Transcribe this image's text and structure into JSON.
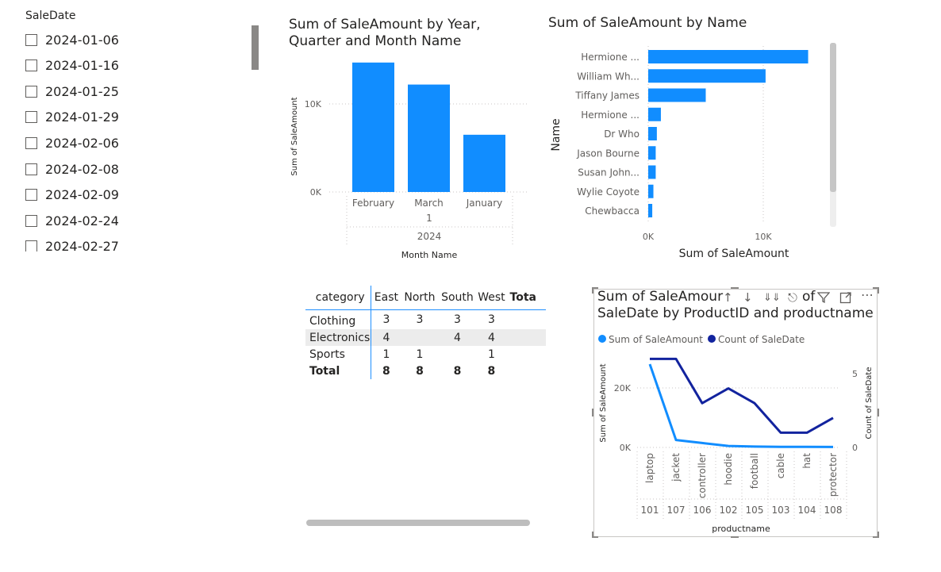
{
  "slicer": {
    "title": "SaleDate",
    "items": [
      "2024-01-06",
      "2024-01-16",
      "2024-01-25",
      "2024-01-29",
      "2024-02-06",
      "2024-02-08",
      "2024-02-09",
      "2024-02-24",
      "2024-02-27"
    ]
  },
  "chart_year": {
    "title_line1": "Sum of SaleAmount by Year,",
    "title_line2": "Quarter and Month Name",
    "chart_data": {
      "type": "bar",
      "title": "Sum of SaleAmount by Year, Quarter and Month Name",
      "categories": [
        "February",
        "March",
        "January"
      ],
      "values": [
        14700,
        12200,
        6500
      ],
      "quarter_label": "1",
      "year_label": "2024",
      "xlabel": "Month Name",
      "ylabel": "Sum of SaleAmount",
      "yticks": [
        "0K",
        "10K"
      ],
      "ylim": [
        0,
        15000
      ],
      "color": "#118dff"
    }
  },
  "chart_name": {
    "title": "Sum of SaleAmount by Name",
    "chart_data": {
      "type": "bar",
      "orientation": "horizontal",
      "title": "Sum of SaleAmount by Name",
      "categories": [
        "Hermione ...",
        "William Wh...",
        "Tiffany James",
        "Hermione ...",
        "Dr Who",
        "Jason Bourne",
        "Susan John...",
        "Wylie Coyote",
        "Chewbacca"
      ],
      "values": [
        13900,
        10200,
        5000,
        1100,
        750,
        650,
        650,
        450,
        350
      ],
      "xlabel": "Sum of SaleAmount",
      "ylabel": "Name",
      "xticks": [
        "0K",
        "10K"
      ],
      "xlim": [
        0,
        15000
      ],
      "color": "#118dff"
    }
  },
  "matrix": {
    "corner": "category",
    "columns": [
      "East",
      "North",
      "South",
      "West",
      "Tota"
    ],
    "rows": [
      {
        "label": "Clothing",
        "values": [
          "3",
          "3",
          "3",
          "3"
        ]
      },
      {
        "label": "Electronics",
        "values": [
          "4",
          "",
          "4",
          "4"
        ]
      },
      {
        "label": "Sports",
        "values": [
          "1",
          "1",
          "",
          "1"
        ]
      }
    ],
    "total": {
      "label": "Total",
      "values": [
        "8",
        "8",
        "8",
        "8"
      ]
    }
  },
  "combo": {
    "title_line1": "Sum of SaleAmour",
    "title_frag": "of",
    "title_line2": "SaleDate by ProductID and productname",
    "icons": [
      "sort-ascending-icon",
      "sort-descending-icon",
      "expand-all-icon",
      "drill-down-icon",
      "filter-icon",
      "focus-mode-icon",
      "more-options-icon"
    ],
    "chart_data": {
      "type": "line",
      "title": "Sum of SaleAmount and Count of SaleDate by ProductID and productname",
      "categories": [
        "laptop",
        "jacket",
        "controller",
        "hoodie",
        "football",
        "cable",
        "hat",
        "protector"
      ],
      "ids": [
        "101",
        "107",
        "106",
        "102",
        "105",
        "103",
        "104",
        "108"
      ],
      "series": [
        {
          "name": "Sum of SaleAmount",
          "axis": "left",
          "color": "#118dff",
          "values": [
            28000,
            2500,
            1500,
            500,
            300,
            200,
            200,
            150
          ]
        },
        {
          "name": "Count of SaleDate",
          "axis": "right",
          "color": "#12239e",
          "values": [
            6,
            6,
            3,
            4,
            3,
            1,
            1,
            2
          ]
        }
      ],
      "xlabel": "productname",
      "ylabel_left": "Sum of SaleAmount",
      "ylabel_right": "Count of SaleDate",
      "yticks_left": [
        "0K",
        "20K"
      ],
      "yticks_right": [
        "0",
        "5"
      ],
      "ylim_left": [
        0,
        30000
      ],
      "ylim_right": [
        0,
        6.4
      ]
    }
  }
}
